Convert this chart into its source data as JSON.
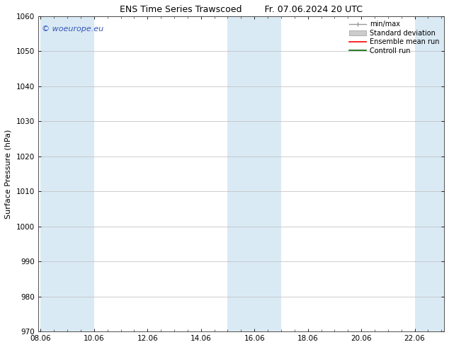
{
  "title_left": "ENS Time Series Trawscoed",
  "title_right": "Fr. 07.06.2024 20 UTC",
  "ylabel": "Surface Pressure (hPa)",
  "ylim": [
    970,
    1060
  ],
  "yticks": [
    970,
    980,
    990,
    1000,
    1010,
    1020,
    1030,
    1040,
    1050,
    1060
  ],
  "xticks": [
    "08.06",
    "10.06",
    "12.06",
    "14.06",
    "16.06",
    "18.06",
    "20.06",
    "22.06"
  ],
  "xtick_positions": [
    0,
    2,
    4,
    6,
    8,
    10,
    12,
    14
  ],
  "xlim": [
    -0.1,
    15.1
  ],
  "shaded_color": "#daeaf5",
  "shaded_intervals": [
    [
      0.0,
      1.0
    ],
    [
      1.0,
      2.0
    ],
    [
      7.0,
      8.0
    ],
    [
      8.0,
      9.0
    ],
    [
      14.0,
      15.1
    ]
  ],
  "watermark_text": "© woeurope.eu",
  "watermark_color": "#3355bb",
  "legend_labels": [
    "min/max",
    "Standard deviation",
    "Ensemble mean run",
    "Controll run"
  ],
  "minmax_color": "#999999",
  "std_color": "#cccccc",
  "ensemble_color": "#ff0000",
  "control_color": "#006600",
  "background_color": "#ffffff",
  "title_fontsize": 9,
  "label_fontsize": 8,
  "tick_fontsize": 7.5,
  "watermark_fontsize": 8,
  "legend_fontsize": 7
}
